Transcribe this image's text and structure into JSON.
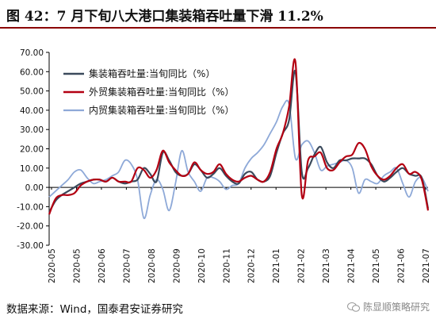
{
  "title": "图 42：7 月下旬八大港口集装箱吞吐量下滑 11.2%",
  "footer": "数据来源：Wind，国泰君安证券研究",
  "watermark": "陈显顺策略研究",
  "chart_data": {
    "type": "line",
    "ylim": [
      -30,
      70
    ],
    "yticks": [
      "70.00",
      "60.00",
      "50.00",
      "40.00",
      "30.00",
      "20.00",
      "10.00",
      "0.00",
      "-10.00",
      "-20.00",
      "-30.00"
    ],
    "xticks": [
      "2020-05",
      "2020-05",
      "2020-06",
      "2020-07",
      "2020-08",
      "2020-09",
      "2020-10",
      "2020-11",
      "2020-12",
      "2021-01",
      "2021-02",
      "2021-03",
      "2021-04",
      "2021-05",
      "2021-06",
      "2021-07"
    ],
    "legend_position": "top-left",
    "series": [
      {
        "name": "集装箱吞吐量:当旬同比（%）",
        "color": "#3b4a5c",
        "width": 2.2,
        "values": [
          -13,
          -7,
          -4,
          -2,
          0,
          2,
          3,
          4,
          4,
          3,
          5,
          3,
          2,
          3,
          4,
          10,
          7,
          3,
          18,
          14,
          8,
          6,
          7,
          12,
          9,
          5,
          7,
          10,
          6,
          3,
          2,
          7,
          8,
          4,
          3,
          6,
          18,
          28,
          35,
          60,
          8,
          10,
          17,
          21,
          13,
          10,
          14,
          14,
          15,
          15,
          15,
          12,
          6,
          3,
          5,
          8,
          10,
          7,
          6,
          5,
          -11
        ]
      },
      {
        "name": "外贸集装箱吞吐量:当旬同比（%）",
        "color": "#b30012",
        "width": 2.2,
        "values": [
          -14,
          -6,
          -4,
          -4,
          -3,
          1,
          3,
          4,
          4,
          3,
          5,
          3,
          3,
          3,
          10,
          9,
          5,
          9,
          19,
          13,
          9,
          6,
          7,
          13,
          9,
          7,
          8,
          12,
          7,
          4,
          3,
          5,
          6,
          4,
          3,
          8,
          20,
          28,
          42,
          65,
          -4,
          14,
          16,
          18,
          10,
          9,
          13,
          16,
          17,
          23,
          20,
          11,
          6,
          4,
          6,
          10,
          12,
          7,
          8,
          4,
          -12
        ]
      },
      {
        "name": "内贸集装箱吞吐量:当旬同比（%）",
        "color": "#8ea9d8",
        "width": 1.8,
        "values": [
          -5,
          -2,
          1,
          4,
          8,
          9,
          5,
          2,
          3,
          4,
          6,
          8,
          14,
          12,
          4,
          -16,
          -4,
          4,
          -1,
          -12,
          2,
          19,
          8,
          3,
          -2,
          5,
          5,
          3,
          -1,
          1,
          2,
          10,
          15,
          18,
          22,
          28,
          34,
          42,
          43,
          15,
          22,
          24,
          18,
          9,
          11,
          12,
          13,
          14,
          10,
          -3,
          4,
          3,
          2,
          6,
          8,
          10,
          2,
          -5,
          3,
          5,
          -2
        ]
      }
    ]
  }
}
